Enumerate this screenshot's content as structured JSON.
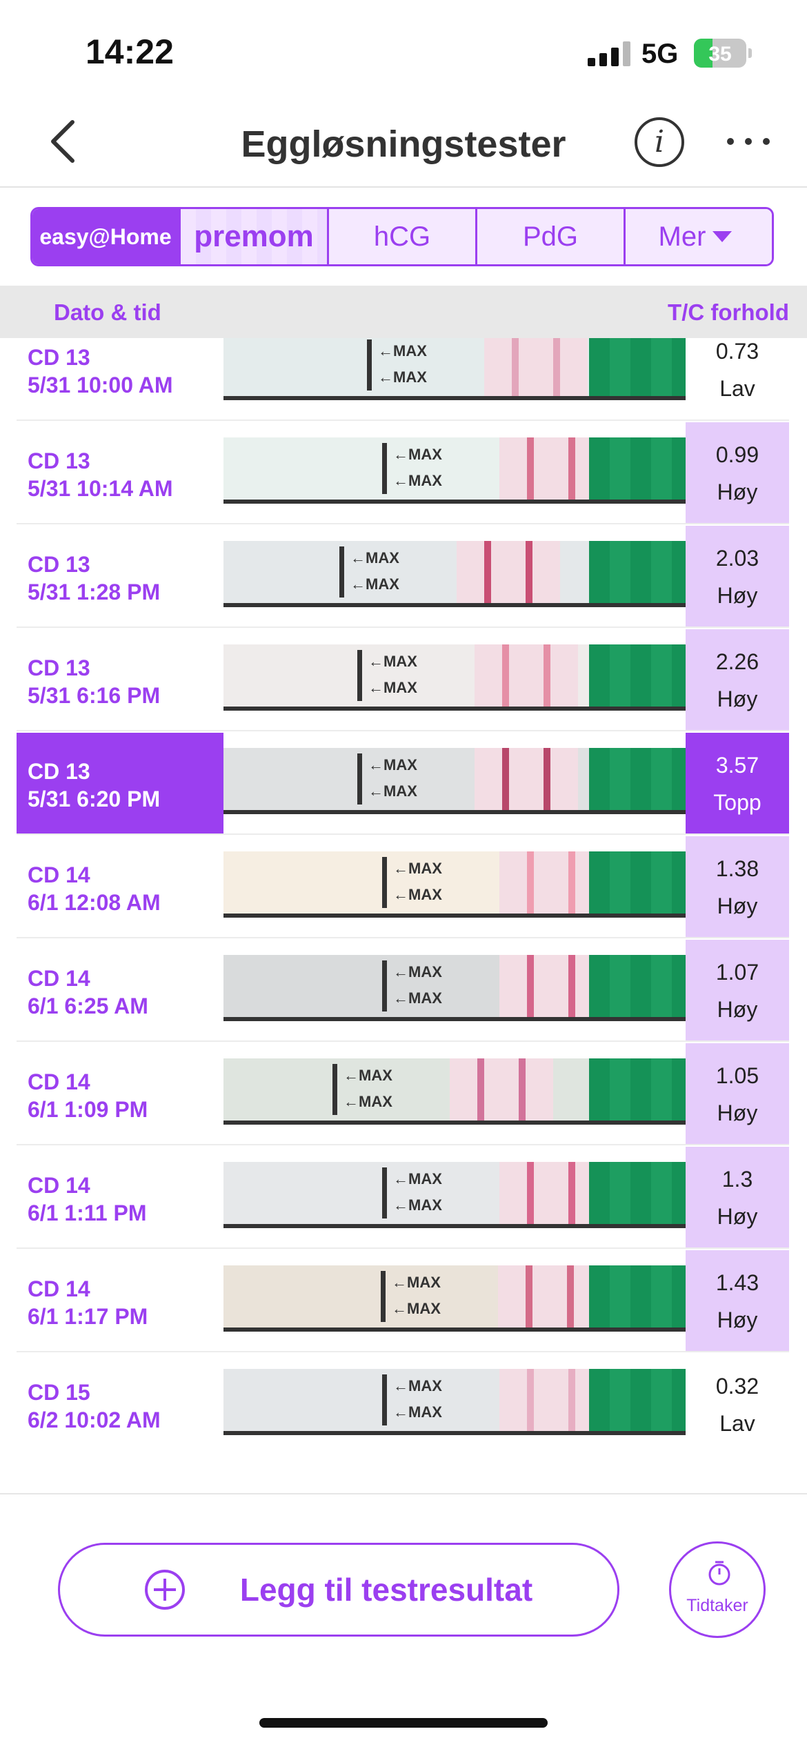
{
  "status_bar": {
    "time": "14:22",
    "network": "5G",
    "battery": "35",
    "battery_level": 0.35
  },
  "header": {
    "title": "Eggløsningstester"
  },
  "tabs": {
    "easy_brand": "easy@Home",
    "premom_brand": "premom",
    "items": [
      {
        "label": "hCG"
      },
      {
        "label": "PdG"
      }
    ],
    "more": "Mer"
  },
  "table": {
    "col_date": "Dato & tid",
    "col_ratio": "T/C forhold"
  },
  "strip_text": "←MAX",
  "rows": [
    {
      "cd": "CD 13",
      "datetime": "5/31 10:00 AM",
      "ratio": "0.73",
      "level": "Lav",
      "highlight": false,
      "selected": false,
      "shade": "#e4ecec",
      "line": "#e3a6bb"
    },
    {
      "cd": "CD 13",
      "datetime": "5/31 10:14 AM",
      "ratio": "0.99",
      "level": "Høy",
      "highlight": true,
      "selected": false,
      "shade": "#e9f1ee",
      "line": "#d9728f"
    },
    {
      "cd": "CD 13",
      "datetime": "5/31 1:28 PM",
      "ratio": "2.03",
      "level": "Høy",
      "highlight": true,
      "selected": false,
      "shade": "#e4e8ea",
      "line": "#c94f74"
    },
    {
      "cd": "CD 13",
      "datetime": "5/31 6:16 PM",
      "ratio": "2.26",
      "level": "Høy",
      "highlight": true,
      "selected": false,
      "shade": "#efeceb",
      "line": "#e58fa6"
    },
    {
      "cd": "CD 13",
      "datetime": "5/31 6:20 PM",
      "ratio": "3.57",
      "level": "Topp",
      "highlight": true,
      "selected": true,
      "shade": "#dfe1e2",
      "line": "#b8476a"
    },
    {
      "cd": "CD 14",
      "datetime": "6/1 12:08 AM",
      "ratio": "1.38",
      "level": "Høy",
      "highlight": true,
      "selected": false,
      "shade": "#f6eee2",
      "line": "#ef9db0"
    },
    {
      "cd": "CD 14",
      "datetime": "6/1 6:25 AM",
      "ratio": "1.07",
      "level": "Høy",
      "highlight": true,
      "selected": false,
      "shade": "#d9dbdc",
      "line": "#d5658a"
    },
    {
      "cd": "CD 14",
      "datetime": "6/1 1:09 PM",
      "ratio": "1.05",
      "level": "Høy",
      "highlight": true,
      "selected": false,
      "shade": "#dfe5df",
      "line": "#d2739a"
    },
    {
      "cd": "CD 14",
      "datetime": "6/1 1:11 PM",
      "ratio": "1.3",
      "level": "Høy",
      "highlight": true,
      "selected": false,
      "shade": "#e6e8ea",
      "line": "#d8668c"
    },
    {
      "cd": "CD 14",
      "datetime": "6/1 1:17 PM",
      "ratio": "1.43",
      "level": "Høy",
      "highlight": true,
      "selected": false,
      "shade": "#eae3d9",
      "line": "#d46b88"
    },
    {
      "cd": "CD 15",
      "datetime": "6/2 10:02 AM",
      "ratio": "0.32",
      "level": "Lav",
      "highlight": false,
      "selected": false,
      "shade": "#e4e7e9",
      "line": "#e7aec2"
    }
  ],
  "actions": {
    "add_label": "Legg til testresultat",
    "timer_label": "Tidtaker"
  },
  "colors": {
    "accent": "#9b3ff0",
    "highlight": "#e5ccfb",
    "strip_green": "#159257"
  }
}
